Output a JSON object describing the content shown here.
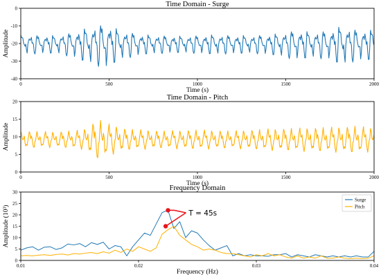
{
  "colors": {
    "surge": "#1f77b4",
    "pitch": "#ffb000",
    "annotation": "#e8141c"
  },
  "chart_data": [
    {
      "type": "line",
      "title": "Time Domain - Surge",
      "xlabel": "Time (s)",
      "ylabel": "Amplitude",
      "xlim": [
        0,
        2000
      ],
      "ylim": [
        -40,
        0
      ],
      "xticks": [
        "0",
        "500",
        "1000",
        "1500",
        "2000"
      ],
      "yticks": [
        "0",
        "-10",
        "-20",
        "-30",
        "-40"
      ],
      "series": [
        {
          "color": "surge",
          "signal": {
            "mean": -20,
            "x_step": 4,
            "components": [
              [
                3.6,
                45,
                0.3
              ],
              [
                1.6,
                22.5,
                1.1
              ],
              [
                1.3,
                15,
                2.3
              ],
              [
                1.0,
                30,
                0.8
              ],
              [
                0.8,
                10,
                1.7
              ]
            ],
            "envelope": [
              [
                0,
                1.0
              ],
              [
                200,
                0.9
              ],
              [
                300,
                1.3
              ],
              [
                400,
                1.9
              ],
              [
                480,
                2.3
              ],
              [
                560,
                1.5
              ],
              [
                700,
                1.0
              ],
              [
                900,
                0.85
              ],
              [
                1100,
                1.0
              ],
              [
                1300,
                0.9
              ],
              [
                1450,
                1.1
              ],
              [
                1550,
                1.5
              ],
              [
                1650,
                1.3
              ],
              [
                1750,
                1.5
              ],
              [
                1820,
                2.0
              ],
              [
                1900,
                1.6
              ],
              [
                2000,
                1.5
              ]
            ]
          }
        }
      ]
    },
    {
      "type": "line",
      "title": "Time Domain - Pitch",
      "xlabel": "Time (s)",
      "ylabel": "Amplitude",
      "xlim": [
        0,
        2000
      ],
      "ylim": [
        0,
        20
      ],
      "xticks": [
        "0",
        "500",
        "1000",
        "1500",
        "2000"
      ],
      "yticks": [
        "0",
        "5",
        "10",
        "15",
        "20"
      ],
      "series": [
        {
          "color": "pitch",
          "signal": {
            "mean": 9.2,
            "x_step": 4,
            "components": [
              [
                1.8,
                45,
                0.7
              ],
              [
                0.7,
                22.5,
                1.9
              ],
              [
                0.6,
                15,
                0.2
              ],
              [
                0.5,
                30,
                2.7
              ],
              [
                0.4,
                10,
                1.2
              ]
            ],
            "envelope": [
              [
                0,
                0.9
              ],
              [
                200,
                0.8
              ],
              [
                350,
                1.0
              ],
              [
                440,
                2.1
              ],
              [
                500,
                1.6
              ],
              [
                600,
                1.1
              ],
              [
                800,
                0.9
              ],
              [
                1000,
                1.0
              ],
              [
                1200,
                0.9
              ],
              [
                1400,
                1.1
              ],
              [
                1600,
                1.2
              ],
              [
                1800,
                1.3
              ],
              [
                1900,
                1.4
              ],
              [
                2000,
                1.2
              ]
            ]
          }
        }
      ]
    },
    {
      "type": "line",
      "title": "Frequency Domain",
      "xlabel": "Frequency (Hz)",
      "ylabel": "Amplitude (10³)",
      "xlim": [
        0.01,
        0.04
      ],
      "ylim": [
        0,
        30
      ],
      "xticks": [
        "0.01",
        "0.02",
        "0.03",
        "0.04"
      ],
      "yticks": [
        "0",
        "5",
        "10",
        "15",
        "20",
        "25",
        "30"
      ],
      "legend": "top-right",
      "x": [
        0.01,
        0.0105,
        0.011,
        0.0115,
        0.012,
        0.0125,
        0.013,
        0.0135,
        0.014,
        0.0145,
        0.015,
        0.0155,
        0.016,
        0.0165,
        0.017,
        0.0175,
        0.018,
        0.0185,
        0.019,
        0.0195,
        0.02,
        0.0205,
        0.021,
        0.0215,
        0.022,
        0.0225,
        0.023,
        0.0235,
        0.024,
        0.0245,
        0.025,
        0.0255,
        0.026,
        0.0265,
        0.027,
        0.0275,
        0.028,
        0.0285,
        0.029,
        0.0295,
        0.03,
        0.0305,
        0.031,
        0.0315,
        0.032,
        0.0325,
        0.033,
        0.0335,
        0.034,
        0.0345,
        0.035,
        0.0355,
        0.036,
        0.0365,
        0.037,
        0.0375,
        0.038,
        0.0385,
        0.039,
        0.0395,
        0.04
      ],
      "series": [
        {
          "name": "Surge",
          "color": "surge",
          "values": [
            4.5,
            5.5,
            6.0,
            4.5,
            5.8,
            6.0,
            4.8,
            5.5,
            7.2,
            6.8,
            7.4,
            6.0,
            7.8,
            7.0,
            8.0,
            5.0,
            6.5,
            6.0,
            2.0,
            6.0,
            9.0,
            12.0,
            11.0,
            16.0,
            21.0,
            22.0,
            14.0,
            17.0,
            10.0,
            13.0,
            12.0,
            9.0,
            6.5,
            4.5,
            5.5,
            6.5,
            2.0,
            3.0,
            2.0,
            2.5,
            2.0,
            2.0,
            1.8,
            2.5,
            2.5,
            3.0,
            1.5,
            2.5,
            2.0,
            1.5,
            2.5,
            2.0,
            1.5,
            2.0,
            1.5,
            2.0,
            1.5,
            2.0,
            1.5,
            1.5,
            4.0
          ]
        },
        {
          "name": "Pitch",
          "color": "pitch",
          "values": [
            2.0,
            2.2,
            2.0,
            2.3,
            2.5,
            2.2,
            2.6,
            2.8,
            2.4,
            3.0,
            2.8,
            3.2,
            3.5,
            3.0,
            3.8,
            3.2,
            4.5,
            3.5,
            5.0,
            4.0,
            6.0,
            5.0,
            4.0,
            5.5,
            11.5,
            13.5,
            15.0,
            11.0,
            9.0,
            7.0,
            6.0,
            4.5,
            5.0,
            4.5,
            3.5,
            3.0,
            3.0,
            2.5,
            2.0,
            1.5,
            2.5,
            2.0,
            3.0,
            2.0,
            2.5,
            1.5,
            1.0,
            2.0,
            1.0,
            1.5,
            1.0,
            2.0,
            1.0,
            1.0,
            1.5,
            1.0,
            0.8,
            1.0,
            0.8,
            1.0,
            2.0
          ]
        }
      ],
      "annotation": {
        "text": "T = 45s",
        "points": [
          [
            0.0225,
            22.0
          ],
          [
            0.0223,
            15.0
          ]
        ],
        "text_at": [
          0.0242,
          20.0
        ]
      }
    }
  ]
}
